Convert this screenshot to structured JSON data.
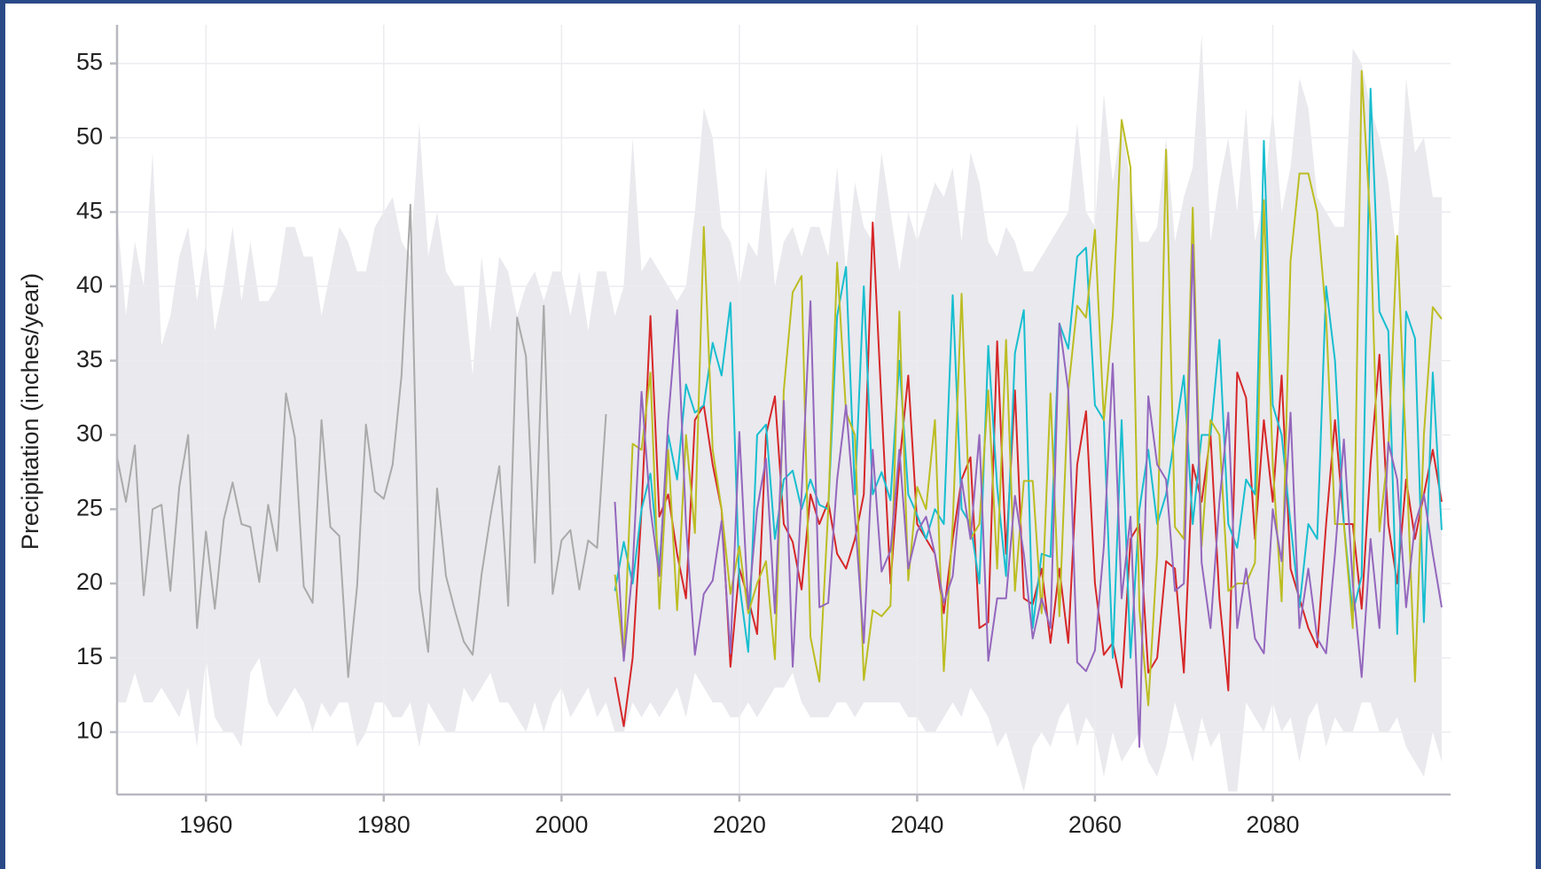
{
  "chart_data": {
    "type": "line",
    "y_label": "Precipitation (inches/year)",
    "xlim": [
      1950,
      2100
    ],
    "ylim": [
      5.8,
      57.6
    ],
    "xticks": [
      1960,
      1980,
      2000,
      2020,
      2040,
      2060,
      2080
    ],
    "yticks": [
      10,
      15,
      20,
      25,
      30,
      35,
      40,
      45,
      50,
      55
    ],
    "grid": true,
    "x": [
      1950,
      1951,
      1952,
      1953,
      1954,
      1955,
      1956,
      1957,
      1958,
      1959,
      1960,
      1961,
      1962,
      1963,
      1964,
      1965,
      1966,
      1967,
      1968,
      1969,
      1970,
      1971,
      1972,
      1973,
      1974,
      1975,
      1976,
      1977,
      1978,
      1979,
      1980,
      1981,
      1982,
      1983,
      1984,
      1985,
      1986,
      1987,
      1988,
      1989,
      1990,
      1991,
      1992,
      1993,
      1994,
      1995,
      1996,
      1997,
      1998,
      1999,
      2000,
      2001,
      2002,
      2003,
      2004,
      2005,
      2006,
      2007,
      2008,
      2009,
      2010,
      2011,
      2012,
      2013,
      2014,
      2015,
      2016,
      2017,
      2018,
      2019,
      2020,
      2021,
      2022,
      2023,
      2024,
      2025,
      2026,
      2027,
      2028,
      2029,
      2030,
      2031,
      2032,
      2033,
      2034,
      2035,
      2036,
      2037,
      2038,
      2039,
      2040,
      2041,
      2042,
      2043,
      2044,
      2045,
      2046,
      2047,
      2048,
      2049,
      2050,
      2051,
      2052,
      2053,
      2054,
      2055,
      2056,
      2057,
      2058,
      2059,
      2060,
      2061,
      2062,
      2063,
      2064,
      2065,
      2066,
      2067,
      2068,
      2069,
      2070,
      2071,
      2072,
      2073,
      2074,
      2075,
      2076,
      2077,
      2078,
      2079,
      2080,
      2081,
      2082,
      2083,
      2084,
      2085,
      2086,
      2087,
      2088,
      2089,
      2090,
      2091,
      2092,
      2093,
      2094,
      2095,
      2096,
      2097,
      2098,
      2099
    ],
    "band": {
      "color": "#e9e9ee",
      "upper": [
        45,
        38,
        43,
        40,
        49,
        36,
        38,
        42,
        44,
        39,
        43,
        37,
        40,
        44,
        39,
        43,
        39,
        39,
        40,
        44,
        44,
        42,
        42,
        38,
        41,
        44,
        43,
        41,
        41,
        44,
        45,
        46,
        43,
        42,
        51,
        42,
        45,
        41,
        40,
        40,
        34,
        42,
        37,
        42,
        41,
        38,
        40,
        41,
        39,
        41,
        41,
        38,
        41,
        37,
        41,
        41,
        38,
        40,
        50,
        41,
        42,
        41,
        40,
        39,
        40,
        45,
        52,
        50,
        44,
        43,
        40,
        43,
        42,
        48,
        40,
        43,
        44,
        42,
        44,
        44,
        42,
        48,
        41,
        47,
        44,
        43,
        49,
        45,
        41,
        45,
        43,
        45,
        47,
        46,
        48,
        43,
        49,
        47,
        43,
        42,
        44,
        43,
        41,
        41,
        42,
        43,
        44,
        45,
        51,
        45,
        44,
        53,
        47,
        51,
        47,
        43,
        43,
        44,
        50,
        43,
        46,
        48,
        57,
        43,
        47,
        50,
        45,
        52,
        43,
        46,
        52,
        45,
        48,
        54,
        52,
        46,
        45,
        44,
        44,
        56,
        55,
        52,
        50,
        47,
        42,
        54,
        49,
        50,
        46,
        46
      ],
      "lower": [
        12,
        12,
        14,
        12,
        12,
        13,
        12,
        11,
        13,
        9,
        15,
        11,
        10,
        10,
        9,
        14,
        15,
        12,
        11,
        12,
        13,
        12,
        10,
        12,
        11,
        12,
        12,
        9,
        10,
        12,
        12,
        11,
        11,
        12,
        9,
        12,
        11,
        10,
        10,
        13,
        12,
        13,
        14,
        12,
        12,
        11,
        10,
        12,
        10,
        12,
        13,
        11,
        12,
        13,
        11,
        12,
        10,
        10,
        12,
        11,
        12,
        11,
        12,
        13,
        11,
        14,
        13,
        12,
        12,
        11,
        11,
        12,
        11,
        12,
        13,
        13,
        14,
        12,
        11,
        11,
        11,
        12,
        12,
        11,
        12,
        12,
        12,
        12,
        12,
        11,
        11,
        10,
        10,
        11,
        12,
        11,
        13,
        12,
        11,
        9,
        10,
        8,
        6,
        9,
        10,
        9,
        11,
        12,
        9,
        11,
        10,
        7,
        10,
        8,
        9,
        10,
        8,
        7,
        9,
        12,
        10,
        8,
        11,
        9,
        10,
        6,
        6,
        12,
        11,
        10,
        12,
        10,
        11,
        8,
        11,
        12,
        9,
        11,
        10,
        10,
        12,
        12,
        10,
        10,
        11,
        9,
        8,
        7,
        10,
        8
      ]
    },
    "series": [
      {
        "color": "#aaaaaa",
        "values": [
          28.5,
          25.5,
          29.3,
          19.2,
          25,
          25.3,
          19.5,
          26.5,
          30,
          17,
          23.5,
          18.3,
          24.3,
          26.8,
          24,
          23.8,
          20.1,
          25.3,
          22.2,
          32.8,
          29.8,
          19.8,
          18.7,
          31,
          23.8,
          23.2,
          13.7,
          19.8,
          30.7,
          26.2,
          25.7,
          28,
          34,
          45.5,
          19.6,
          15.4,
          26.4,
          20.5,
          18.2,
          16.1,
          15.2,
          20.6,
          24.5,
          27.9,
          18.5,
          37.9,
          35.3,
          21.4,
          38.7,
          19.3,
          22.9,
          23.6,
          19.6,
          22.9,
          22.4,
          31.4,
          null,
          null,
          null,
          null,
          null,
          null,
          null,
          null,
          null,
          null,
          null,
          null,
          null,
          null,
          null,
          null,
          null,
          null,
          null,
          null,
          null,
          null,
          null,
          null,
          null,
          null,
          null,
          null,
          null,
          null,
          null,
          null,
          null,
          null,
          null,
          null,
          null,
          null,
          null,
          null,
          null,
          null,
          null,
          null,
          null,
          null,
          null,
          null,
          null,
          null,
          null,
          null,
          null,
          null,
          null,
          null,
          null,
          null,
          null,
          null,
          null,
          null,
          null,
          null,
          null,
          null,
          null,
          null,
          null,
          null,
          null,
          null,
          null,
          null,
          null,
          null,
          null,
          null,
          null,
          null,
          null,
          null,
          null,
          null,
          null,
          null,
          null,
          null,
          null,
          null,
          null,
          null,
          null,
          null
        ]
      },
      {
        "color": "#d62728",
        "values": [
          null,
          null,
          null,
          null,
          null,
          null,
          null,
          null,
          null,
          null,
          null,
          null,
          null,
          null,
          null,
          null,
          null,
          null,
          null,
          null,
          null,
          null,
          null,
          null,
          null,
          null,
          null,
          null,
          null,
          null,
          null,
          null,
          null,
          null,
          null,
          null,
          null,
          null,
          null,
          null,
          null,
          null,
          null,
          null,
          null,
          null,
          null,
          null,
          null,
          null,
          null,
          null,
          null,
          null,
          null,
          null,
          13.7,
          10.4,
          15,
          25,
          38,
          24.5,
          26,
          22,
          19,
          31,
          32,
          28,
          25,
          14.4,
          21,
          19,
          16.6,
          30,
          32.6,
          24,
          22.8,
          19.6,
          26,
          24,
          25.5,
          22,
          21,
          23,
          26,
          44.3,
          32,
          20,
          28,
          34,
          24,
          23,
          22,
          18,
          23,
          27,
          28.5,
          17,
          17.4,
          36.3,
          22,
          33,
          19,
          18.6,
          21,
          16,
          21,
          16,
          28,
          31.6,
          20,
          15.2,
          16,
          13,
          23,
          24,
          14,
          15,
          21.5,
          21,
          14,
          28,
          25.5,
          30,
          19,
          12.8,
          34.2,
          32.5,
          23,
          31,
          25.5,
          34,
          21,
          19,
          17,
          15.7,
          24,
          31,
          24,
          24,
          18.3,
          28,
          35.4,
          24,
          20,
          27,
          23,
          26,
          29,
          25.5
        ]
      },
      {
        "color": "#17becf",
        "values": [
          null,
          null,
          null,
          null,
          null,
          null,
          null,
          null,
          null,
          null,
          null,
          null,
          null,
          null,
          null,
          null,
          null,
          null,
          null,
          null,
          null,
          null,
          null,
          null,
          null,
          null,
          null,
          null,
          null,
          null,
          null,
          null,
          null,
          null,
          null,
          null,
          null,
          null,
          null,
          null,
          null,
          null,
          null,
          null,
          null,
          null,
          null,
          null,
          null,
          null,
          null,
          null,
          null,
          null,
          null,
          null,
          19.5,
          22.8,
          20,
          25,
          27.4,
          21,
          30,
          27,
          33.4,
          31.5,
          32,
          36.2,
          34,
          38.9,
          20,
          15.4,
          30,
          30.7,
          23,
          27,
          27.6,
          25,
          27,
          25.3,
          25,
          38,
          41.3,
          26,
          40,
          26,
          27.5,
          25.6,
          35,
          26,
          24.6,
          23,
          25,
          24,
          39.4,
          25,
          24,
          20,
          36,
          26.5,
          20.5,
          35.5,
          38.4,
          17,
          22,
          21.8,
          37.5,
          35.8,
          42,
          42.6,
          32,
          31,
          15,
          31,
          15,
          25,
          29,
          24,
          26,
          30,
          34,
          24,
          30,
          30,
          36.4,
          24,
          22.4,
          27,
          26,
          49.8,
          32,
          30,
          24,
          18.4,
          24,
          23,
          40,
          35,
          24,
          18,
          20.5,
          53.3,
          38.3,
          37,
          16.6,
          38.3,
          36.5,
          17.4,
          34.2,
          23.6
        ]
      },
      {
        "color": "#bcbd22",
        "values": [
          null,
          null,
          null,
          null,
          null,
          null,
          null,
          null,
          null,
          null,
          null,
          null,
          null,
          null,
          null,
          null,
          null,
          null,
          null,
          null,
          null,
          null,
          null,
          null,
          null,
          null,
          null,
          null,
          null,
          null,
          null,
          null,
          null,
          null,
          null,
          null,
          null,
          null,
          null,
          null,
          null,
          null,
          null,
          null,
          null,
          null,
          null,
          null,
          null,
          null,
          null,
          null,
          null,
          null,
          null,
          null,
          20.6,
          15,
          29.4,
          29,
          34.2,
          18.3,
          29,
          18.2,
          30,
          23.4,
          44,
          29,
          25,
          19.3,
          22.5,
          18,
          20,
          21.5,
          14.9,
          33,
          39.6,
          40.7,
          16.4,
          13.4,
          25,
          41.6,
          31.5,
          30,
          13.5,
          18.2,
          17.8,
          18.5,
          38.3,
          20.2,
          26.5,
          25,
          31,
          14.1,
          24,
          39.5,
          23,
          24,
          33,
          21,
          36.4,
          19.5,
          26.9,
          26.9,
          18,
          32.8,
          17.8,
          33,
          38.7,
          37.9,
          43.8,
          31,
          38,
          51.2,
          48,
          18.2,
          11.8,
          22,
          49.2,
          23.8,
          23,
          45.3,
          22.5,
          31,
          30,
          19.5,
          20,
          20,
          21.4,
          45.8,
          28,
          18.8,
          41.7,
          47.6,
          47.6,
          45,
          38,
          24,
          24,
          17,
          54.5,
          44,
          23.5,
          29,
          43.4,
          28.7,
          13.4,
          30,
          38.6,
          37.8
        ]
      },
      {
        "color": "#9467bd",
        "values": [
          null,
          null,
          null,
          null,
          null,
          null,
          null,
          null,
          null,
          null,
          null,
          null,
          null,
          null,
          null,
          null,
          null,
          null,
          null,
          null,
          null,
          null,
          null,
          null,
          null,
          null,
          null,
          null,
          null,
          null,
          null,
          null,
          null,
          null,
          null,
          null,
          null,
          null,
          null,
          null,
          null,
          null,
          null,
          null,
          null,
          null,
          null,
          null,
          null,
          null,
          null,
          null,
          null,
          null,
          null,
          null,
          25.5,
          14.8,
          21,
          32.9,
          25,
          20.5,
          31,
          38.4,
          24,
          15.2,
          19.3,
          20.2,
          24.2,
          15.3,
          30.2,
          18.3,
          25,
          28.4,
          18,
          32.3,
          14.4,
          26,
          39,
          18.4,
          18.7,
          27,
          32,
          24.5,
          16,
          29,
          20.8,
          22.2,
          29,
          21,
          23.5,
          24.5,
          22,
          18.7,
          20.5,
          27,
          23,
          30,
          14.8,
          19,
          19,
          25.9,
          22,
          16.3,
          19,
          17,
          37.5,
          33,
          14.7,
          14.1,
          15.5,
          22.5,
          34.8,
          19,
          24.5,
          9,
          32.6,
          28,
          27,
          19.5,
          20,
          42.8,
          21.4,
          17,
          25.5,
          31.5,
          17,
          21,
          16.3,
          15.3,
          25,
          21.5,
          31.5,
          17,
          21,
          16.3,
          15.3,
          22,
          29.7,
          20,
          13.7,
          23,
          17,
          29.5,
          27,
          18.4,
          24,
          26,
          22,
          18.4
        ]
      }
    ]
  }
}
